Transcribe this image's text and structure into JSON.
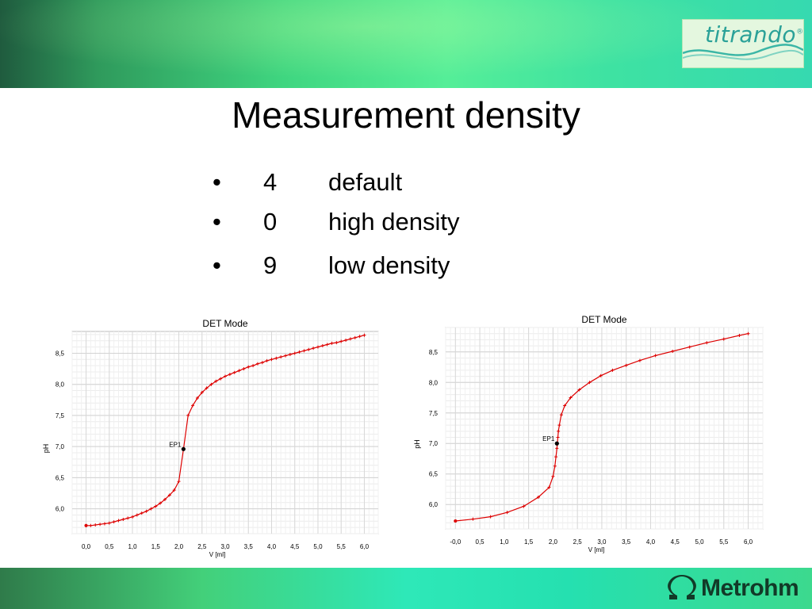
{
  "slide": {
    "title": "Measurement density",
    "bullets": [
      {
        "symbol": "•",
        "value": "4",
        "label": "default"
      },
      {
        "symbol": "•",
        "value": "0",
        "label": "high density"
      },
      {
        "symbol": "•",
        "value": "9",
        "label": "low density"
      }
    ],
    "logo_text": "titrando",
    "logo_mark": "®",
    "footer_brand": "Metrohm",
    "footer_icon": "omega-icon"
  },
  "chart_data": [
    {
      "type": "line",
      "title": "DET Mode",
      "xlabel": "V [ml]",
      "ylabel": "pH",
      "xlim": [
        -0.3,
        6.3
      ],
      "ylim": [
        5.6,
        8.85
      ],
      "xticks": [
        "0,0",
        "0,5",
        "1,0",
        "1,5",
        "2,0",
        "2,5",
        "3,0",
        "3,5",
        "4,0",
        "4,5",
        "5,0",
        "5,5",
        "6,0"
      ],
      "xtick_values": [
        0,
        0.5,
        1,
        1.5,
        2,
        2.5,
        3,
        3.5,
        4,
        4.5,
        5,
        5.5,
        6
      ],
      "yticks": [
        "6,0",
        "6,5",
        "7,0",
        "7,5",
        "8,0",
        "8,5"
      ],
      "ytick_values": [
        6,
        6.5,
        7,
        7.5,
        8,
        8.5
      ],
      "grid": true,
      "color": "#dd0000",
      "endpoint": {
        "label": "EP1",
        "x": 2.1,
        "y": 6.96
      },
      "series": [
        {
          "x": [
            0.0,
            0.1,
            0.2,
            0.3,
            0.4,
            0.5,
            0.6,
            0.7,
            0.8,
            0.9,
            1.0,
            1.1,
            1.2,
            1.3,
            1.4,
            1.5,
            1.6,
            1.7,
            1.8,
            1.9,
            2.0,
            2.1,
            2.2,
            2.3,
            2.4,
            2.5,
            2.6,
            2.7,
            2.8,
            2.9,
            3.0,
            3.1,
            3.2,
            3.3,
            3.4,
            3.5,
            3.6,
            3.7,
            3.8,
            3.9,
            4.0,
            4.1,
            4.2,
            4.3,
            4.4,
            4.5,
            4.6,
            4.7,
            4.8,
            4.9,
            5.0,
            5.1,
            5.2,
            5.3,
            5.4,
            5.5,
            5.6,
            5.7,
            5.8,
            5.9,
            6.0
          ],
          "y": [
            5.73,
            5.73,
            5.74,
            5.75,
            5.76,
            5.77,
            5.79,
            5.81,
            5.83,
            5.85,
            5.87,
            5.9,
            5.93,
            5.96,
            6.0,
            6.04,
            6.09,
            6.15,
            6.22,
            6.3,
            6.44,
            6.96,
            7.5,
            7.66,
            7.78,
            7.87,
            7.94,
            8.0,
            8.05,
            8.09,
            8.13,
            8.16,
            8.19,
            8.22,
            8.25,
            8.28,
            8.3,
            8.33,
            8.35,
            8.38,
            8.4,
            8.42,
            8.44,
            8.46,
            8.48,
            8.5,
            8.52,
            8.54,
            8.56,
            8.58,
            8.6,
            8.62,
            8.64,
            8.66,
            8.67,
            8.69,
            8.71,
            8.73,
            8.75,
            8.77,
            8.79
          ]
        }
      ]
    },
    {
      "type": "line",
      "title": "DET Mode",
      "xlabel": "V [ml]",
      "ylabel": "pH",
      "xlim": [
        -0.2,
        6.3
      ],
      "ylim": [
        5.6,
        8.9
      ],
      "xticks": [
        "-0,0",
        "0,5",
        "1,0",
        "1,5",
        "2,0",
        "2,5",
        "3,0",
        "3,5",
        "4,0",
        "4,5",
        "5,0",
        "5,5",
        "6,0"
      ],
      "xtick_values": [
        0,
        0.5,
        1,
        1.5,
        2,
        2.5,
        3,
        3.5,
        4,
        4.5,
        5,
        5.5,
        6
      ],
      "yticks": [
        "6,0",
        "6,5",
        "7,0",
        "7,5",
        "8,0",
        "8,5"
      ],
      "ytick_values": [
        6,
        6.5,
        7,
        7.5,
        8,
        8.5
      ],
      "grid": true,
      "color": "#dd0000",
      "endpoint": {
        "label": "EP1",
        "x": 2.08,
        "y": 7.0
      },
      "series": [
        {
          "x": [
            0.0,
            0.36,
            0.72,
            1.06,
            1.4,
            1.7,
            1.92,
            2.0,
            2.04,
            2.06,
            2.08,
            2.09,
            2.1,
            2.11,
            2.13,
            2.17,
            2.24,
            2.36,
            2.54,
            2.75,
            2.98,
            3.22,
            3.5,
            3.78,
            4.1,
            4.45,
            4.8,
            5.15,
            5.5,
            5.82,
            6.0
          ],
          "y": [
            5.73,
            5.76,
            5.8,
            5.87,
            5.97,
            6.12,
            6.28,
            6.46,
            6.63,
            6.78,
            6.92,
            7.0,
            7.1,
            7.2,
            7.3,
            7.47,
            7.62,
            7.75,
            7.88,
            8.0,
            8.11,
            8.2,
            8.28,
            8.36,
            8.44,
            8.51,
            8.58,
            8.65,
            8.71,
            8.77,
            8.8
          ]
        }
      ]
    }
  ]
}
